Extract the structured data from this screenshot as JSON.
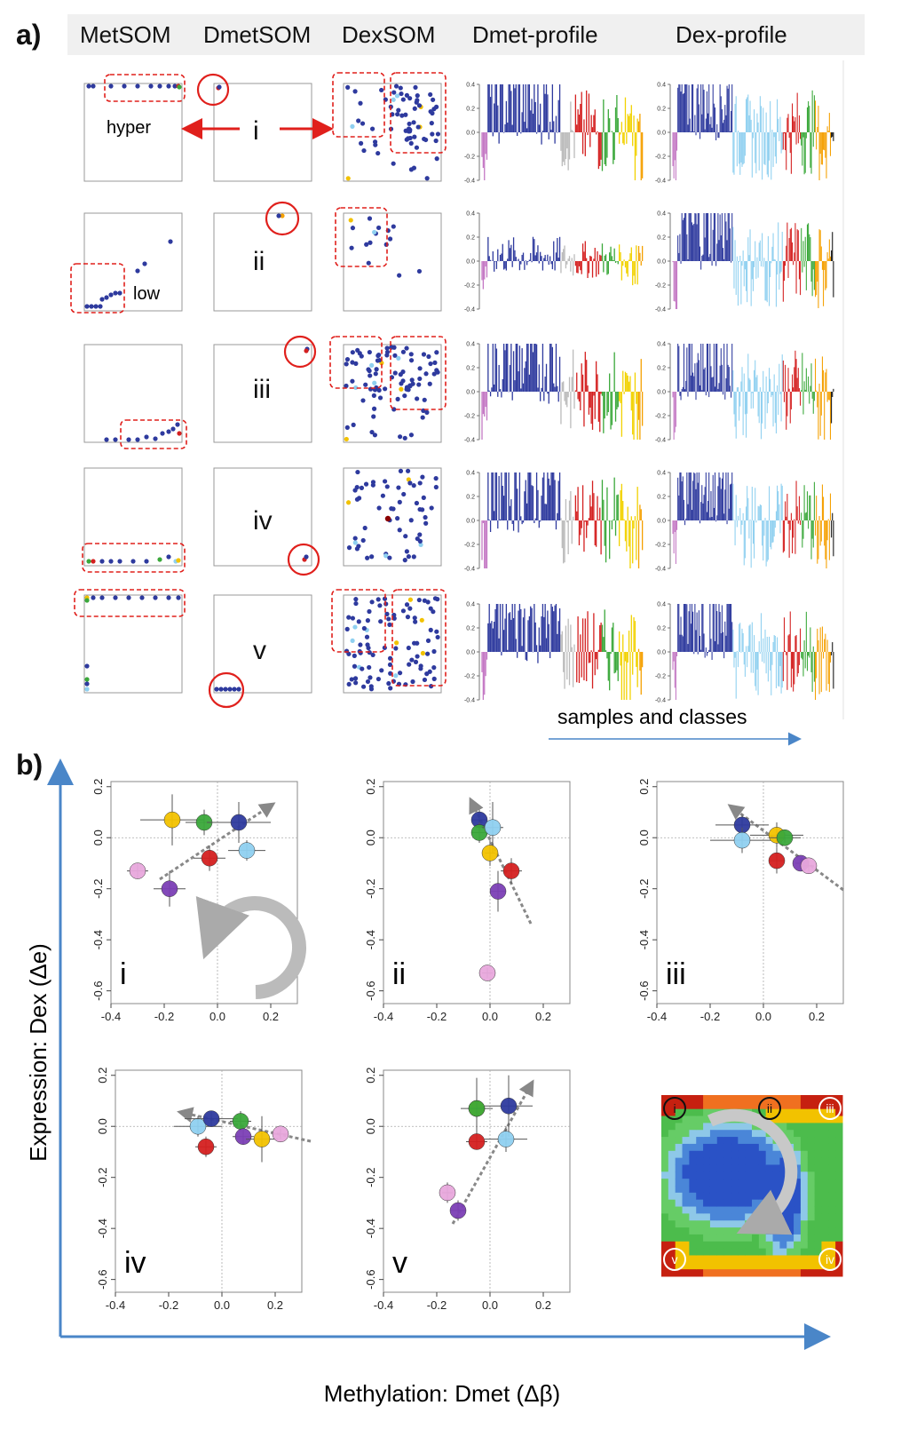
{
  "panel_a": {
    "label": "a)",
    "headers": [
      "MetSOM",
      "DmetSOM",
      "DexSOM",
      "Dmet-profile",
      "Dex-profile"
    ],
    "rows": [
      "i",
      "ii",
      "iii",
      "iv",
      "v"
    ],
    "annotations": {
      "hyper": "hyper",
      "low": "low",
      "footer": "samples and classes"
    },
    "profile_ticks": [
      "0.4",
      "0.2",
      "0.0",
      "-0.2",
      "-0.4"
    ],
    "class_colors": [
      "#c478c4",
      "#2e3a9e",
      "#bbbbbb",
      "#8fd0f0",
      "#d42020",
      "#3aa83a",
      "#f2d200",
      "#f5a000",
      "#111111"
    ]
  },
  "panel_b": {
    "label": "b)",
    "y_axis_label": "Expression: Dex  (Δe)",
    "x_axis_label": "Methylation: Dmet (Δβ)",
    "x_ticks": [
      "-0.4",
      "-0.2",
      "0.0",
      "0.2"
    ],
    "y_ticks": [
      "0.2",
      "0.0",
      "-0.2",
      "-0.4",
      "-0.6"
    ],
    "map_labels": [
      "i",
      "ii",
      "iii",
      "iv",
      "v"
    ]
  },
  "chart_data": [
    {
      "type": "scatter",
      "panel": "i",
      "xlim": [
        -0.4,
        0.3
      ],
      "ylim": [
        -0.65,
        0.22
      ],
      "points": [
        {
          "color": "#e8a8dc",
          "x": -0.3,
          "y": -0.13,
          "xerr": 0.04,
          "yerr": 0.03
        },
        {
          "color": "#7b3fb5",
          "x": -0.18,
          "y": -0.2,
          "xerr": 0.06,
          "yerr": 0.07
        },
        {
          "color": "#f2c200",
          "x": -0.17,
          "y": 0.07,
          "xerr": 0.12,
          "yerr": 0.1
        },
        {
          "color": "#3aa83a",
          "x": -0.05,
          "y": 0.06,
          "xerr": 0.07,
          "yerr": 0.05
        },
        {
          "color": "#d42020",
          "x": -0.03,
          "y": -0.08,
          "xerr": 0.06,
          "yerr": 0.05
        },
        {
          "color": "#2e3a9e",
          "x": 0.08,
          "y": 0.06,
          "xerr": 0.12,
          "yerr": 0.08
        },
        {
          "color": "#8fd0f0",
          "x": 0.11,
          "y": -0.05,
          "xerr": 0.07,
          "yerr": 0.04
        }
      ]
    },
    {
      "type": "scatter",
      "panel": "ii",
      "xlim": [
        -0.4,
        0.3
      ],
      "ylim": [
        -0.65,
        0.22
      ],
      "points": [
        {
          "color": "#2e3a9e",
          "x": -0.04,
          "y": 0.07,
          "xerr": 0.03,
          "yerr": 0.04
        },
        {
          "color": "#3aa83a",
          "x": -0.04,
          "y": 0.02,
          "xerr": 0.03,
          "yerr": 0.04
        },
        {
          "color": "#8fd0f0",
          "x": 0.01,
          "y": 0.04,
          "xerr": 0.04,
          "yerr": 0.1
        },
        {
          "color": "#f2c200",
          "x": 0.0,
          "y": -0.06,
          "xerr": 0.02,
          "yerr": 0.05
        },
        {
          "color": "#d42020",
          "x": 0.08,
          "y": -0.13,
          "xerr": 0.04,
          "yerr": 0.05
        },
        {
          "color": "#7b3fb5",
          "x": 0.03,
          "y": -0.21,
          "xerr": 0.03,
          "yerr": 0.08
        },
        {
          "color": "#e8a8dc",
          "x": -0.01,
          "y": -0.53,
          "xerr": 0.02,
          "yerr": 0.02
        }
      ]
    },
    {
      "type": "scatter",
      "panel": "iii",
      "xlim": [
        -0.4,
        0.3
      ],
      "ylim": [
        -0.65,
        0.22
      ],
      "points": [
        {
          "color": "#2e3a9e",
          "x": -0.08,
          "y": 0.05,
          "xerr": 0.1,
          "yerr": 0.04
        },
        {
          "color": "#8fd0f0",
          "x": -0.08,
          "y": -0.01,
          "xerr": 0.12,
          "yerr": 0.05
        },
        {
          "color": "#f2c200",
          "x": 0.05,
          "y": 0.01,
          "xerr": 0.1,
          "yerr": 0.05
        },
        {
          "color": "#3aa83a",
          "x": 0.08,
          "y": 0.0,
          "xerr": 0.06,
          "yerr": 0.02
        },
        {
          "color": "#d42020",
          "x": 0.05,
          "y": -0.09,
          "xerr": 0.03,
          "yerr": 0.05
        },
        {
          "color": "#7b3fb5",
          "x": 0.14,
          "y": -0.1,
          "xerr": 0.02,
          "yerr": 0.02
        },
        {
          "color": "#e8a8dc",
          "x": 0.17,
          "y": -0.11,
          "xerr": 0.02,
          "yerr": 0.02
        }
      ]
    },
    {
      "type": "scatter",
      "panel": "iv",
      "xlim": [
        -0.4,
        0.3
      ],
      "ylim": [
        -0.65,
        0.22
      ],
      "points": [
        {
          "color": "#8fd0f0",
          "x": -0.09,
          "y": 0.0,
          "xerr": 0.09,
          "yerr": 0.04
        },
        {
          "color": "#2e3a9e",
          "x": -0.04,
          "y": 0.03,
          "xerr": 0.1,
          "yerr": 0.03
        },
        {
          "color": "#d42020",
          "x": -0.06,
          "y": -0.08,
          "xerr": 0.04,
          "yerr": 0.04
        },
        {
          "color": "#3aa83a",
          "x": 0.07,
          "y": 0.02,
          "xerr": 0.04,
          "yerr": 0.04
        },
        {
          "color": "#7b3fb5",
          "x": 0.08,
          "y": -0.04,
          "xerr": 0.04,
          "yerr": 0.03
        },
        {
          "color": "#f2c200",
          "x": 0.15,
          "y": -0.05,
          "xerr": 0.06,
          "yerr": 0.09
        },
        {
          "color": "#e8a8dc",
          "x": 0.22,
          "y": -0.03,
          "xerr": 0.03,
          "yerr": 0.02
        }
      ]
    },
    {
      "type": "scatter",
      "panel": "v",
      "xlim": [
        -0.4,
        0.3
      ],
      "ylim": [
        -0.65,
        0.22
      ],
      "points": [
        {
          "color": "#f2c200",
          "x": -0.05,
          "y": 0.07,
          "xerr": 0.06,
          "yerr": 0.12
        },
        {
          "color": "#3aa83a",
          "x": -0.05,
          "y": 0.07,
          "xerr": 0.03,
          "yerr": 0.03
        },
        {
          "color": "#2e3a9e",
          "x": 0.07,
          "y": 0.08,
          "xerr": 0.09,
          "yerr": 0.12
        },
        {
          "color": "#d42020",
          "x": -0.05,
          "y": -0.06,
          "xerr": 0.04,
          "yerr": 0.03
        },
        {
          "color": "#8fd0f0",
          "x": 0.06,
          "y": -0.05,
          "xerr": 0.08,
          "yerr": 0.05
        },
        {
          "color": "#e8a8dc",
          "x": -0.16,
          "y": -0.26,
          "xerr": 0.02,
          "yerr": 0.04
        },
        {
          "color": "#7b3fb5",
          "x": -0.12,
          "y": -0.33,
          "xerr": 0.03,
          "yerr": 0.04
        }
      ]
    }
  ]
}
